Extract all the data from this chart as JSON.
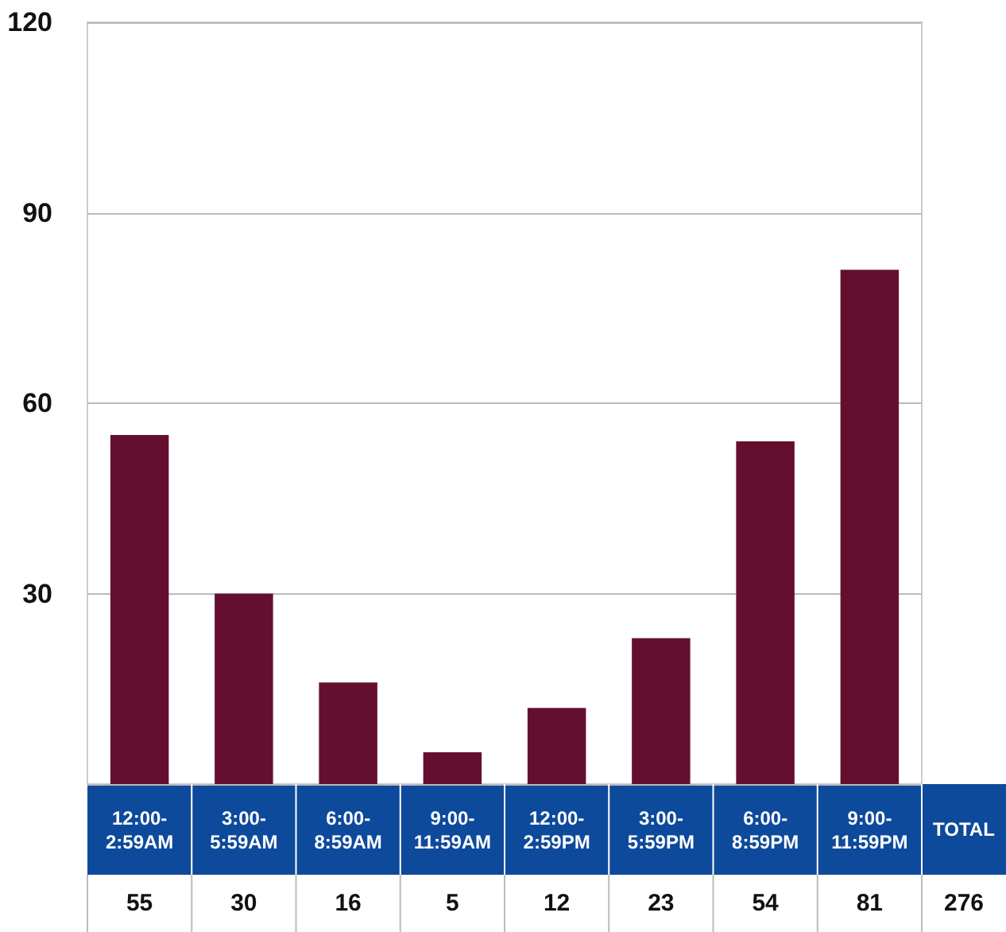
{
  "chart_data": {
    "type": "bar",
    "categories": [
      "12:00-2:59AM",
      "3:00-5:59AM",
      "6:00-8:59AM",
      "9:00-11:59AM",
      "12:00-2:59PM",
      "3:00-5:59PM",
      "6:00-8:59PM",
      "9:00-11:59PM"
    ],
    "values": [
      55,
      30,
      16,
      5,
      12,
      23,
      54,
      81
    ],
    "color": "#650f30",
    "ylim": [
      0,
      120
    ],
    "yticks": [
      {
        "value": 0,
        "label": null
      },
      30,
      60,
      90,
      120
    ],
    "grid": "y",
    "data_labels": true,
    "annotations": [
      "TOTAL",
      "276"
    ]
  }
}
